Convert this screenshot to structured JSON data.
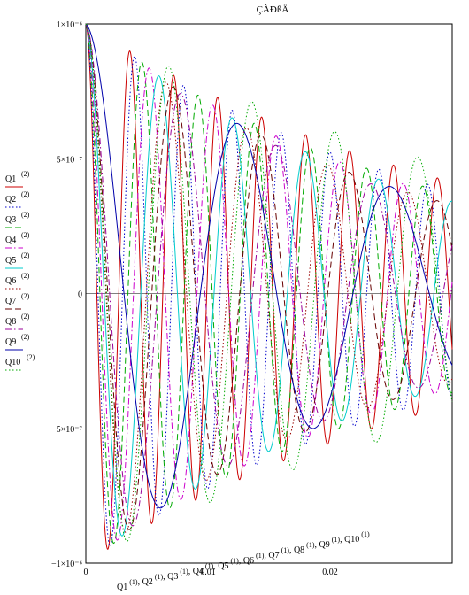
{
  "chart_data": {
    "type": "line",
    "title": "ÇÀÐßÄ",
    "xlim": [
      0,
      0.03
    ],
    "ylim": [
      -1e-06,
      1e-06
    ],
    "x_ticks": [
      {
        "value": 0,
        "label": "0"
      },
      {
        "value": 0.01,
        "label": "0.01"
      },
      {
        "value": 0.02,
        "label": "0.02"
      }
    ],
    "y_ticks": [
      {
        "value": 1e-06,
        "label": "1×10⁻⁶"
      },
      {
        "value": 5e-07,
        "label": "5×10⁻⁷"
      },
      {
        "value": 0,
        "label": "0"
      },
      {
        "value": -5e-07,
        "label": "−5×10⁻⁷"
      },
      {
        "value": -1e-06,
        "label": "−1×10⁻⁶"
      }
    ],
    "xlabel_parts": [
      "Q1",
      "Q2",
      "Q3",
      "Q4",
      "Q5",
      "Q6",
      "Q7",
      "Q8",
      "Q9",
      "Q10"
    ],
    "xlabel_sup": "(1)",
    "ylabel_sup": "(2)",
    "series": [
      {
        "name": "Q1",
        "color": "#cc0000",
        "dash": "solid",
        "amplitude": 1e-06,
        "period": 0.0036,
        "decay": 0.034
      },
      {
        "name": "Q2",
        "color": "#0000cc",
        "dash": "dotted",
        "amplitude": 1e-06,
        "period": 0.004,
        "decay": 0.031
      },
      {
        "name": "Q3",
        "color": "#00aa00",
        "dash": "dashed",
        "amplitude": 1e-06,
        "period": 0.0046,
        "decay": 0.03
      },
      {
        "name": "Q4",
        "color": "#cc00cc",
        "dash": "dashdot",
        "amplitude": 1e-06,
        "period": 0.0052,
        "decay": 0.029
      },
      {
        "name": "Q5",
        "color": "#00cccc",
        "dash": "solid",
        "amplitude": 1e-06,
        "period": 0.006,
        "decay": 0.028
      },
      {
        "name": "Q6",
        "color": "#990000",
        "dash": "dotted",
        "amplitude": 1e-06,
        "period": 0.0066,
        "decay": 0.027
      },
      {
        "name": "Q7",
        "color": "#660000",
        "dash": "dashed",
        "amplitude": 1e-06,
        "period": 0.0072,
        "decay": 0.027
      },
      {
        "name": "Q8",
        "color": "#990099",
        "dash": "dashdot",
        "amplitude": 1e-06,
        "period": 0.0078,
        "decay": 0.026
      },
      {
        "name": "Q9",
        "color": "#0000aa",
        "dash": "solid",
        "amplitude": 1e-06,
        "period": 0.0125,
        "decay": 0.027
      },
      {
        "name": "Q10",
        "color": "#00aa00",
        "dash": "dotted",
        "amplitude": 1e-06,
        "period": 0.0068,
        "decay": 0.04
      }
    ]
  }
}
